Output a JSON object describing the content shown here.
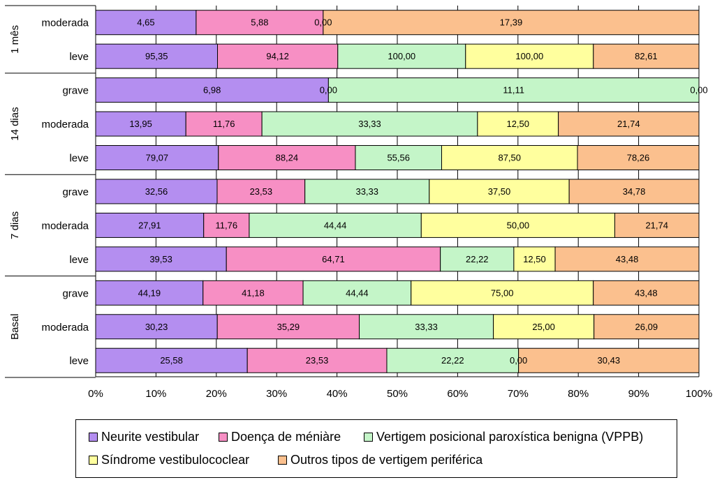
{
  "chart_data": {
    "type": "bar",
    "orientation": "horizontal",
    "stacked": "percent",
    "xlim": [
      0,
      100
    ],
    "x_ticks": [
      "0%",
      "10%",
      "20%",
      "30%",
      "40%",
      "50%",
      "60%",
      "70%",
      "80%",
      "90%",
      "100%"
    ],
    "groups": [
      {
        "name": "1 mês",
        "categories": [
          "moderada",
          "leve"
        ]
      },
      {
        "name": "14 dias",
        "categories": [
          "grave",
          "moderada",
          "leve"
        ]
      },
      {
        "name": "7 dias",
        "categories": [
          "grave",
          "moderada",
          "leve"
        ]
      },
      {
        "name": "Basal",
        "categories": [
          "grave",
          "moderada",
          "leve"
        ]
      }
    ],
    "series": [
      {
        "name": "Neurite vestibular",
        "color": "#b48ef0"
      },
      {
        "name": "Doença de méniàre",
        "color": "#f78fc4"
      },
      {
        "name": "Vertigem posicional paroxística benigna (VPPB)",
        "color": "#c4f5c8"
      },
      {
        "name": "Síndrome vestibulococlear",
        "color": "#ffff9e"
      },
      {
        "name": "Outros tipos de vertigem periférica",
        "color": "#fbc08e"
      }
    ],
    "rows": [
      {
        "group": "1 mês",
        "category": "moderada",
        "labels": [
          "4,65",
          "5,88",
          "0,00",
          "",
          "17,39"
        ],
        "values": [
          4.65,
          5.88,
          0,
          0,
          17.39
        ]
      },
      {
        "group": "1 mês",
        "category": "leve",
        "labels": [
          "95,35",
          "94,12",
          "100,00",
          "100,00",
          "82,61"
        ],
        "values": [
          95.35,
          94.12,
          100,
          100,
          82.61
        ]
      },
      {
        "group": "14 dias",
        "category": "grave",
        "labels": [
          "6,98",
          "0,00",
          "11,11",
          "",
          "0,00"
        ],
        "values": [
          6.98,
          0,
          11.11,
          0,
          0
        ]
      },
      {
        "group": "14 dias",
        "category": "moderada",
        "labels": [
          "13,95",
          "11,76",
          "33,33",
          "12,50",
          "21,74"
        ],
        "values": [
          13.95,
          11.76,
          33.33,
          12.5,
          21.74
        ]
      },
      {
        "group": "14 dias",
        "category": "leve",
        "labels": [
          "79,07",
          "88,24",
          "55,56",
          "87,50",
          "78,26"
        ],
        "values": [
          79.07,
          88.24,
          55.56,
          87.5,
          78.26
        ]
      },
      {
        "group": "7 dias",
        "category": "grave",
        "labels": [
          "32,56",
          "23,53",
          "33,33",
          "37,50",
          "34,78"
        ],
        "values": [
          32.56,
          23.53,
          33.33,
          37.5,
          34.78
        ]
      },
      {
        "group": "7 dias",
        "category": "moderada",
        "labels": [
          "27,91",
          "11,76",
          "44,44",
          "50,00",
          "21,74"
        ],
        "values": [
          27.91,
          11.76,
          44.44,
          50,
          21.74
        ]
      },
      {
        "group": "7 dias",
        "category": "leve",
        "labels": [
          "39,53",
          "64,71",
          "22,22",
          "12,50",
          "43,48"
        ],
        "values": [
          39.53,
          64.71,
          22.22,
          12.5,
          43.48
        ]
      },
      {
        "group": "Basal",
        "category": "grave",
        "labels": [
          "44,19",
          "41,18",
          "44,44",
          "75,00",
          "43,48"
        ],
        "values": [
          44.19,
          41.18,
          44.44,
          75,
          43.48
        ]
      },
      {
        "group": "Basal",
        "category": "moderada",
        "labels": [
          "30,23",
          "35,29",
          "33,33",
          "25,00",
          "26,09"
        ],
        "values": [
          30.23,
          35.29,
          33.33,
          25,
          26.09
        ]
      },
      {
        "group": "Basal",
        "category": "leve",
        "labels": [
          "25,58",
          "23,53",
          "22,22",
          "0,00",
          "30,43"
        ],
        "values": [
          25.58,
          23.53,
          22.22,
          0,
          30.43
        ]
      }
    ]
  }
}
